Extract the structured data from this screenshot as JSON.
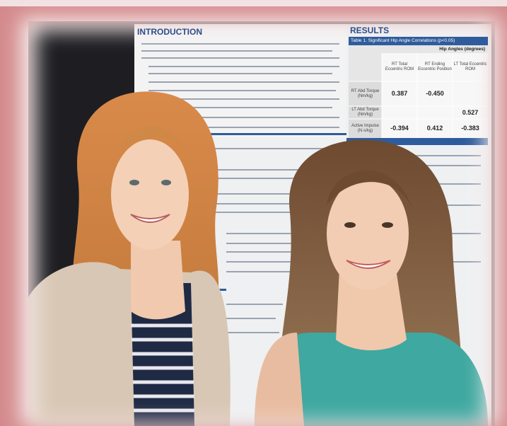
{
  "poster": {
    "introduction": {
      "heading": "INTRODUCTION"
    },
    "results": {
      "heading": "RESULTS",
      "table": {
        "caption": "Table 1. Significant Hip Angle Correlations (p<0.05)",
        "group_header": "Hip Angles (degrees)",
        "columns": [
          "RT Total Eccentric ROM",
          "RT Ending Eccentric Position",
          "LT Total Eccentric ROM"
        ],
        "rows": [
          {
            "label": "RT Abd Torque (Nm/kg)",
            "cells": [
              "0.387",
              "-0.450",
              null
            ]
          },
          {
            "label": "LT Abd Torque (Nm/kg)",
            "cells": [
              null,
              null,
              "0.527"
            ]
          },
          {
            "label": "Active Impulse (N·s/kg)",
            "cells": [
              "-0.394",
              "0.412",
              "-0.383"
            ]
          }
        ]
      }
    }
  }
}
